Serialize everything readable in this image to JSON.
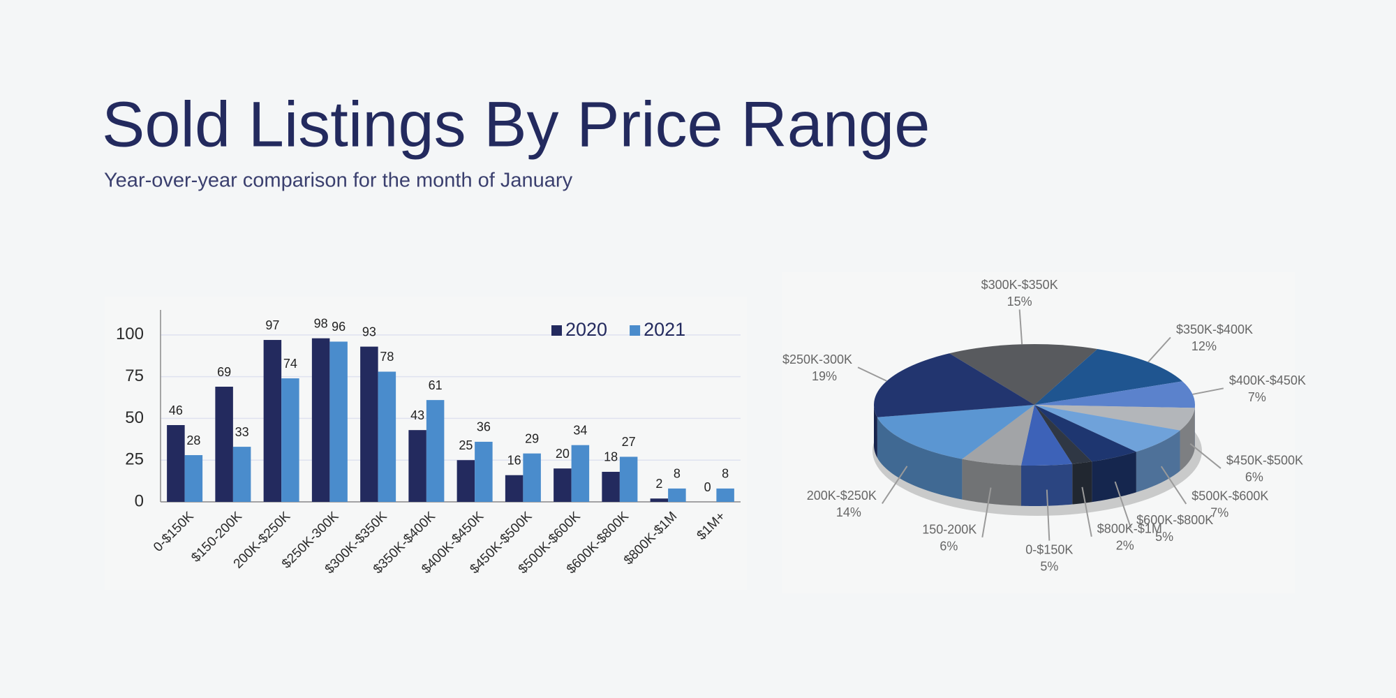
{
  "title": "Sold Listings By Price Range",
  "subtitle": "Year-over-year comparison for the month of January",
  "chart_data": [
    {
      "type": "bar",
      "categories": [
        "0-$150K",
        "$150-200K",
        "200K-$250K",
        "$250K-300K",
        "$300K-$350K",
        "$350K-$400K",
        "$400K-$450K",
        "$450K-$500K",
        "$500K-$600K",
        "$600K-$800K",
        "$800K-$1M",
        "$1M+"
      ],
      "series": [
        {
          "name": "2020",
          "color": "#232a5e",
          "values": [
            46,
            69,
            97,
            98,
            93,
            43,
            25,
            16,
            20,
            18,
            2,
            0
          ]
        },
        {
          "name": "2021",
          "color": "#4a8ccc",
          "values": [
            28,
            33,
            74,
            96,
            78,
            61,
            36,
            29,
            34,
            27,
            8,
            8
          ]
        }
      ],
      "ylim": [
        0,
        115
      ],
      "yticks": [
        0,
        25,
        50,
        75,
        100
      ],
      "grid": true,
      "legend": "upper right"
    },
    {
      "type": "pie",
      "categories": [
        "$300K-$350K",
        "$350K-$400K",
        "$400K-$450K",
        "$450K-$500K",
        "$500K-$600K",
        "$600K-$800K",
        "$800K-$1M",
        "0-$150K",
        "150-200K",
        "200K-$250K",
        "$250K-300K"
      ],
      "values": [
        15,
        12,
        7,
        6,
        7,
        5,
        2,
        5,
        6,
        14,
        19
      ],
      "value_labels": [
        "15%",
        "12%",
        "7%",
        "6%",
        "7%",
        "5%",
        "2%",
        "5%",
        "6%",
        "14%",
        "19%"
      ],
      "colors": [
        "#585a5e",
        "#1f5590",
        "#5b82cc",
        "#b3b6ba",
        "#6fa2da",
        "#1e3670",
        "#2f3744",
        "#3d62b8",
        "#a2a4a7",
        "#5b96d2",
        "#22356f"
      ]
    }
  ]
}
